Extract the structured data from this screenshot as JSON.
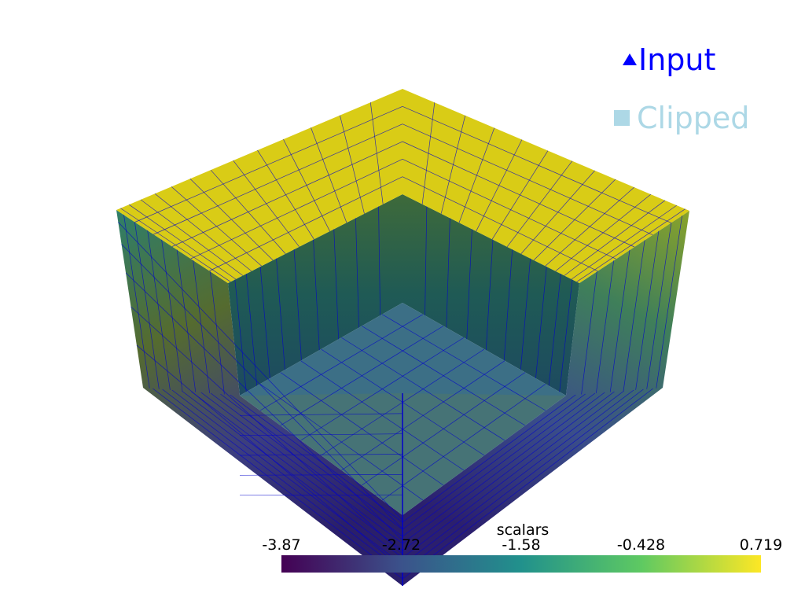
{
  "legend": {
    "entries": [
      {
        "label": "Input",
        "color": "#0000ff"
      },
      {
        "label": "Clipped",
        "color": "#add8e6"
      }
    ]
  },
  "colorbar": {
    "title": "scalars",
    "ticks": [
      "-3.87",
      "-2.72",
      "-1.58",
      "-0.428",
      "0.719"
    ]
  }
}
